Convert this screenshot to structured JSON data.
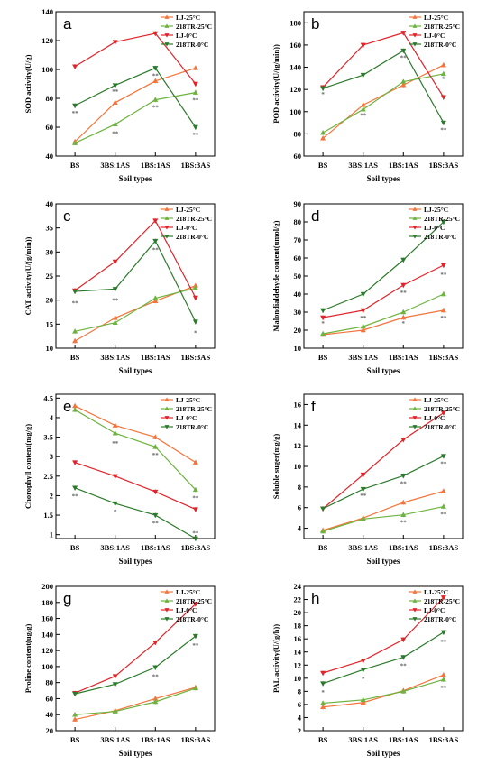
{
  "colors": {
    "LJ-25": "#f4743b",
    "218TR-25": "#6db33f",
    "LJ-0": "#e0242a",
    "218TR-0": "#2c7a2c"
  },
  "chart_data": [
    {
      "type": "line",
      "panel": "a",
      "categories": [
        "BS",
        "3BS:1AS",
        "1BS:1AS",
        "1BS:3AS"
      ],
      "xlabel": "Soil types",
      "ylabel": "SOD activity(U/g)",
      "ylim": [
        40,
        140
      ],
      "yticks": [
        40,
        60,
        80,
        100,
        120,
        140
      ],
      "series": [
        {
          "name": "LJ-25°C",
          "color_key": "LJ-25",
          "marker": "up",
          "values": [
            50,
            77,
            92,
            101
          ]
        },
        {
          "name": "218TR-25°C",
          "color_key": "218TR-25",
          "marker": "up",
          "values": [
            49,
            62,
            79,
            84
          ]
        },
        {
          "name": "LJ-0°C",
          "color_key": "LJ-0",
          "marker": "down",
          "values": [
            102,
            119,
            125,
            90
          ]
        },
        {
          "name": "218TR-0°C",
          "color_key": "218TR-0",
          "marker": "down",
          "values": [
            75,
            89,
            101,
            60
          ]
        }
      ],
      "annotations": [
        {
          "cat": 0,
          "y": 70,
          "text": "**"
        },
        {
          "cat": 1,
          "y": 85,
          "text": "**"
        },
        {
          "cat": 1,
          "y": 56,
          "text": "**"
        },
        {
          "cat": 2,
          "y": 96,
          "text": "**"
        },
        {
          "cat": 2,
          "y": 74,
          "text": "**"
        },
        {
          "cat": 3,
          "y": 79,
          "text": "**"
        },
        {
          "cat": 3,
          "y": 55,
          "text": "**"
        }
      ],
      "legend": "top-right"
    },
    {
      "type": "line",
      "panel": "b",
      "categories": [
        "BS",
        "3BS:1AS",
        "1BS:1AS",
        "1BS:3AS"
      ],
      "xlabel": "Soil types",
      "ylabel": "POD activity(U/(g/min))",
      "ylim": [
        60,
        190
      ],
      "yticks": [
        60,
        80,
        100,
        120,
        140,
        160,
        180
      ],
      "series": [
        {
          "name": "LJ-25°C",
          "color_key": "LJ-25",
          "marker": "up",
          "values": [
            76,
            106,
            124,
            142
          ]
        },
        {
          "name": "218TR-25°C",
          "color_key": "218TR-25",
          "marker": "up",
          "values": [
            81,
            102,
            127,
            134
          ]
        },
        {
          "name": "LJ-0°C",
          "color_key": "LJ-0",
          "marker": "down",
          "values": [
            122,
            160,
            171,
            113
          ]
        },
        {
          "name": "218TR-0°C",
          "color_key": "218TR-0",
          "marker": "down",
          "values": [
            121,
            133,
            155,
            90
          ]
        }
      ],
      "annotations": [
        {
          "cat": 0,
          "y": 116,
          "text": "*"
        },
        {
          "cat": 1,
          "y": 97,
          "text": "**"
        },
        {
          "cat": 2,
          "y": 149,
          "text": "**"
        },
        {
          "cat": 3,
          "y": 84,
          "text": "**"
        },
        {
          "cat": 3,
          "y": 130,
          "text": "*"
        }
      ],
      "legend": "top-right"
    },
    {
      "type": "line",
      "panel": "c",
      "categories": [
        "BS",
        "3BS:1AS",
        "1BS:1AS",
        "1BS:3AS"
      ],
      "xlabel": "Soil types",
      "ylabel": "CAT activity(U/(g/min))",
      "ylim": [
        10,
        40
      ],
      "yticks": [
        10,
        15,
        20,
        25,
        30,
        35,
        40
      ],
      "series": [
        {
          "name": "LJ-25°C",
          "color_key": "LJ-25",
          "marker": "up",
          "values": [
            11.5,
            16.3,
            19.8,
            23
          ]
        },
        {
          "name": "218TR-25°C",
          "color_key": "218TR-25",
          "marker": "up",
          "values": [
            13.5,
            15.3,
            20.4,
            22.5
          ]
        },
        {
          "name": "LJ-0°C",
          "color_key": "LJ-0",
          "marker": "down",
          "values": [
            22,
            28,
            36.5,
            20.5
          ]
        },
        {
          "name": "218TR-0°C",
          "color_key": "218TR-0",
          "marker": "down",
          "values": [
            21.8,
            22.3,
            32.3,
            15.5
          ]
        }
      ],
      "annotations": [
        {
          "cat": 0,
          "y": 19.5,
          "text": "**"
        },
        {
          "cat": 1,
          "y": 20.0,
          "text": "**"
        },
        {
          "cat": 2,
          "y": 30.5,
          "text": "**"
        },
        {
          "cat": 3,
          "y": 13.3,
          "text": "*"
        }
      ],
      "legend": "top-right"
    },
    {
      "type": "line",
      "panel": "d",
      "categories": [
        "BS",
        "3BS:1AS",
        "1BS:1AS",
        "1BS:3AS"
      ],
      "xlabel": "Soil types",
      "ylabel": "Malondialdehyde content(umol/g)",
      "ylim": [
        10,
        90
      ],
      "yticks": [
        10,
        20,
        30,
        40,
        50,
        60,
        70,
        80,
        90
      ],
      "series": [
        {
          "name": "LJ-25°C",
          "color_key": "LJ-25",
          "marker": "up",
          "values": [
            17.5,
            20,
            27,
            31
          ]
        },
        {
          "name": "218TR-25°C",
          "color_key": "218TR-25",
          "marker": "up",
          "values": [
            18,
            22,
            30,
            40
          ]
        },
        {
          "name": "LJ-0°C",
          "color_key": "LJ-0",
          "marker": "down",
          "values": [
            27,
            31,
            45,
            56
          ]
        },
        {
          "name": "218TR-0°C",
          "color_key": "218TR-0",
          "marker": "down",
          "values": [
            31,
            40,
            59,
            80
          ]
        }
      ],
      "annotations": [
        {
          "cat": 0,
          "y": 24,
          "text": "*"
        },
        {
          "cat": 1,
          "y": 27,
          "text": "**"
        },
        {
          "cat": 2,
          "y": 41,
          "text": "**"
        },
        {
          "cat": 2,
          "y": 24,
          "text": "*"
        },
        {
          "cat": 3,
          "y": 51,
          "text": "**"
        },
        {
          "cat": 3,
          "y": 27,
          "text": "**"
        }
      ],
      "legend": "top-right"
    },
    {
      "type": "line",
      "panel": "e",
      "categories": [
        "BS",
        "3BS:1AS",
        "1BS:1AS",
        "1BS:3AS"
      ],
      "xlabel": "Soil types",
      "ylabel": "Chorophyll content(mg/g)",
      "ylim": [
        0.9,
        4.6
      ],
      "yticks": [
        1.0,
        1.5,
        2.0,
        2.5,
        3.0,
        3.5,
        4.0,
        4.5
      ],
      "series": [
        {
          "name": "LJ-25°C",
          "color_key": "LJ-25",
          "marker": "up",
          "values": [
            4.3,
            3.8,
            3.5,
            2.85
          ]
        },
        {
          "name": "218TR-25°C",
          "color_key": "218TR-25",
          "marker": "up",
          "values": [
            4.2,
            3.6,
            3.25,
            2.15
          ]
        },
        {
          "name": "LJ-0°C",
          "color_key": "LJ-0",
          "marker": "down",
          "values": [
            2.85,
            2.5,
            2.1,
            1.65
          ]
        },
        {
          "name": "218TR-0°C",
          "color_key": "218TR-0",
          "marker": "down",
          "values": [
            2.2,
            1.8,
            1.5,
            0.9
          ]
        }
      ],
      "annotations": [
        {
          "cat": 0,
          "y": 2.0,
          "text": "**"
        },
        {
          "cat": 1,
          "y": 3.35,
          "text": "**"
        },
        {
          "cat": 1,
          "y": 1.6,
          "text": "*"
        },
        {
          "cat": 2,
          "y": 3.05,
          "text": "**"
        },
        {
          "cat": 2,
          "y": 1.3,
          "text": "**"
        },
        {
          "cat": 3,
          "y": 1.95,
          "text": "**"
        },
        {
          "cat": 3,
          "y": 1.05,
          "text": "**"
        }
      ],
      "legend": "top-right"
    },
    {
      "type": "line",
      "panel": "f",
      "categories": [
        "BS",
        "3BS:1AS",
        "1BS:1AS",
        "1BS:3AS"
      ],
      "xlabel": "Soil types",
      "ylabel": "Soluble suger(mg/g)",
      "ylim": [
        3,
        17
      ],
      "yticks": [
        4,
        6,
        8,
        10,
        12,
        14,
        16
      ],
      "series": [
        {
          "name": "LJ-25°C",
          "color_key": "LJ-25",
          "marker": "up",
          "values": [
            3.8,
            5.0,
            6.5,
            7.6
          ]
        },
        {
          "name": "218TR-25°C",
          "color_key": "218TR-25",
          "marker": "up",
          "values": [
            3.7,
            4.9,
            5.3,
            6.1
          ]
        },
        {
          "name": "LJ-0°C",
          "color_key": "LJ-0",
          "marker": "down",
          "values": [
            5.9,
            9.2,
            12.6,
            15.2
          ]
        },
        {
          "name": "218TR-0°C",
          "color_key": "218TR-0",
          "marker": "down",
          "values": [
            5.9,
            7.8,
            9.1,
            11.0
          ]
        }
      ],
      "annotations": [
        {
          "cat": 1,
          "y": 7.2,
          "text": "**"
        },
        {
          "cat": 2,
          "y": 8.4,
          "text": "**"
        },
        {
          "cat": 2,
          "y": 4.6,
          "text": "**"
        },
        {
          "cat": 3,
          "y": 10.3,
          "text": "**"
        },
        {
          "cat": 3,
          "y": 5.4,
          "text": "**"
        }
      ],
      "legend": "top-right"
    },
    {
      "type": "line",
      "panel": "g",
      "categories": [
        "BS",
        "3BS:1AS",
        "1BS:1AS",
        "1BS:3AS"
      ],
      "xlabel": "Soil types",
      "ylabel": "Proline content(ug/g)",
      "ylim": [
        20,
        200
      ],
      "yticks": [
        20,
        40,
        60,
        80,
        100,
        120,
        140,
        160,
        180,
        200
      ],
      "series": [
        {
          "name": "LJ-25°C",
          "color_key": "LJ-25",
          "marker": "up",
          "values": [
            34,
            45,
            60,
            74
          ]
        },
        {
          "name": "218TR-25°C",
          "color_key": "218TR-25",
          "marker": "up",
          "values": [
            40,
            44,
            56,
            73
          ]
        },
        {
          "name": "LJ-0°C",
          "color_key": "LJ-0",
          "marker": "down",
          "values": [
            67,
            88,
            130,
            178
          ]
        },
        {
          "name": "218TR-0°C",
          "color_key": "218TR-0",
          "marker": "down",
          "values": [
            66,
            78,
            99,
            138
          ]
        }
      ],
      "annotations": [
        {
          "cat": 2,
          "y": 88,
          "text": "**"
        },
        {
          "cat": 3,
          "y": 127,
          "text": "**"
        }
      ],
      "legend": "top-right"
    },
    {
      "type": "line",
      "panel": "h",
      "categories": [
        "BS",
        "3BS:1AS",
        "1BS:1AS",
        "1BS:3AS"
      ],
      "xlabel": "Soil types",
      "ylabel": "PAL activity(U/(g/h))",
      "ylim": [
        2,
        24
      ],
      "yticks": [
        2,
        4,
        6,
        8,
        10,
        12,
        14,
        16,
        18,
        20,
        22,
        24
      ],
      "series": [
        {
          "name": "LJ-25°C",
          "color_key": "LJ-25",
          "marker": "up",
          "values": [
            5.6,
            6.3,
            8.1,
            10.5
          ]
        },
        {
          "name": "218TR-25°C",
          "color_key": "218TR-25",
          "marker": "up",
          "values": [
            6.2,
            6.7,
            8.0,
            9.8
          ]
        },
        {
          "name": "LJ-0°C",
          "color_key": "LJ-0",
          "marker": "down",
          "values": [
            10.8,
            12.7,
            15.9,
            22.3
          ]
        },
        {
          "name": "218TR-0°C",
          "color_key": "218TR-0",
          "marker": "down",
          "values": [
            9.2,
            11.3,
            13.2,
            17.0
          ]
        }
      ],
      "annotations": [
        {
          "cat": 0,
          "y": 7.9,
          "text": "*"
        },
        {
          "cat": 1,
          "y": 10.0,
          "text": "*"
        },
        {
          "cat": 2,
          "y": 12.0,
          "text": "**"
        },
        {
          "cat": 3,
          "y": 15.6,
          "text": "**"
        },
        {
          "cat": 3,
          "y": 8.6,
          "text": "**"
        }
      ],
      "legend": "top-right"
    }
  ]
}
